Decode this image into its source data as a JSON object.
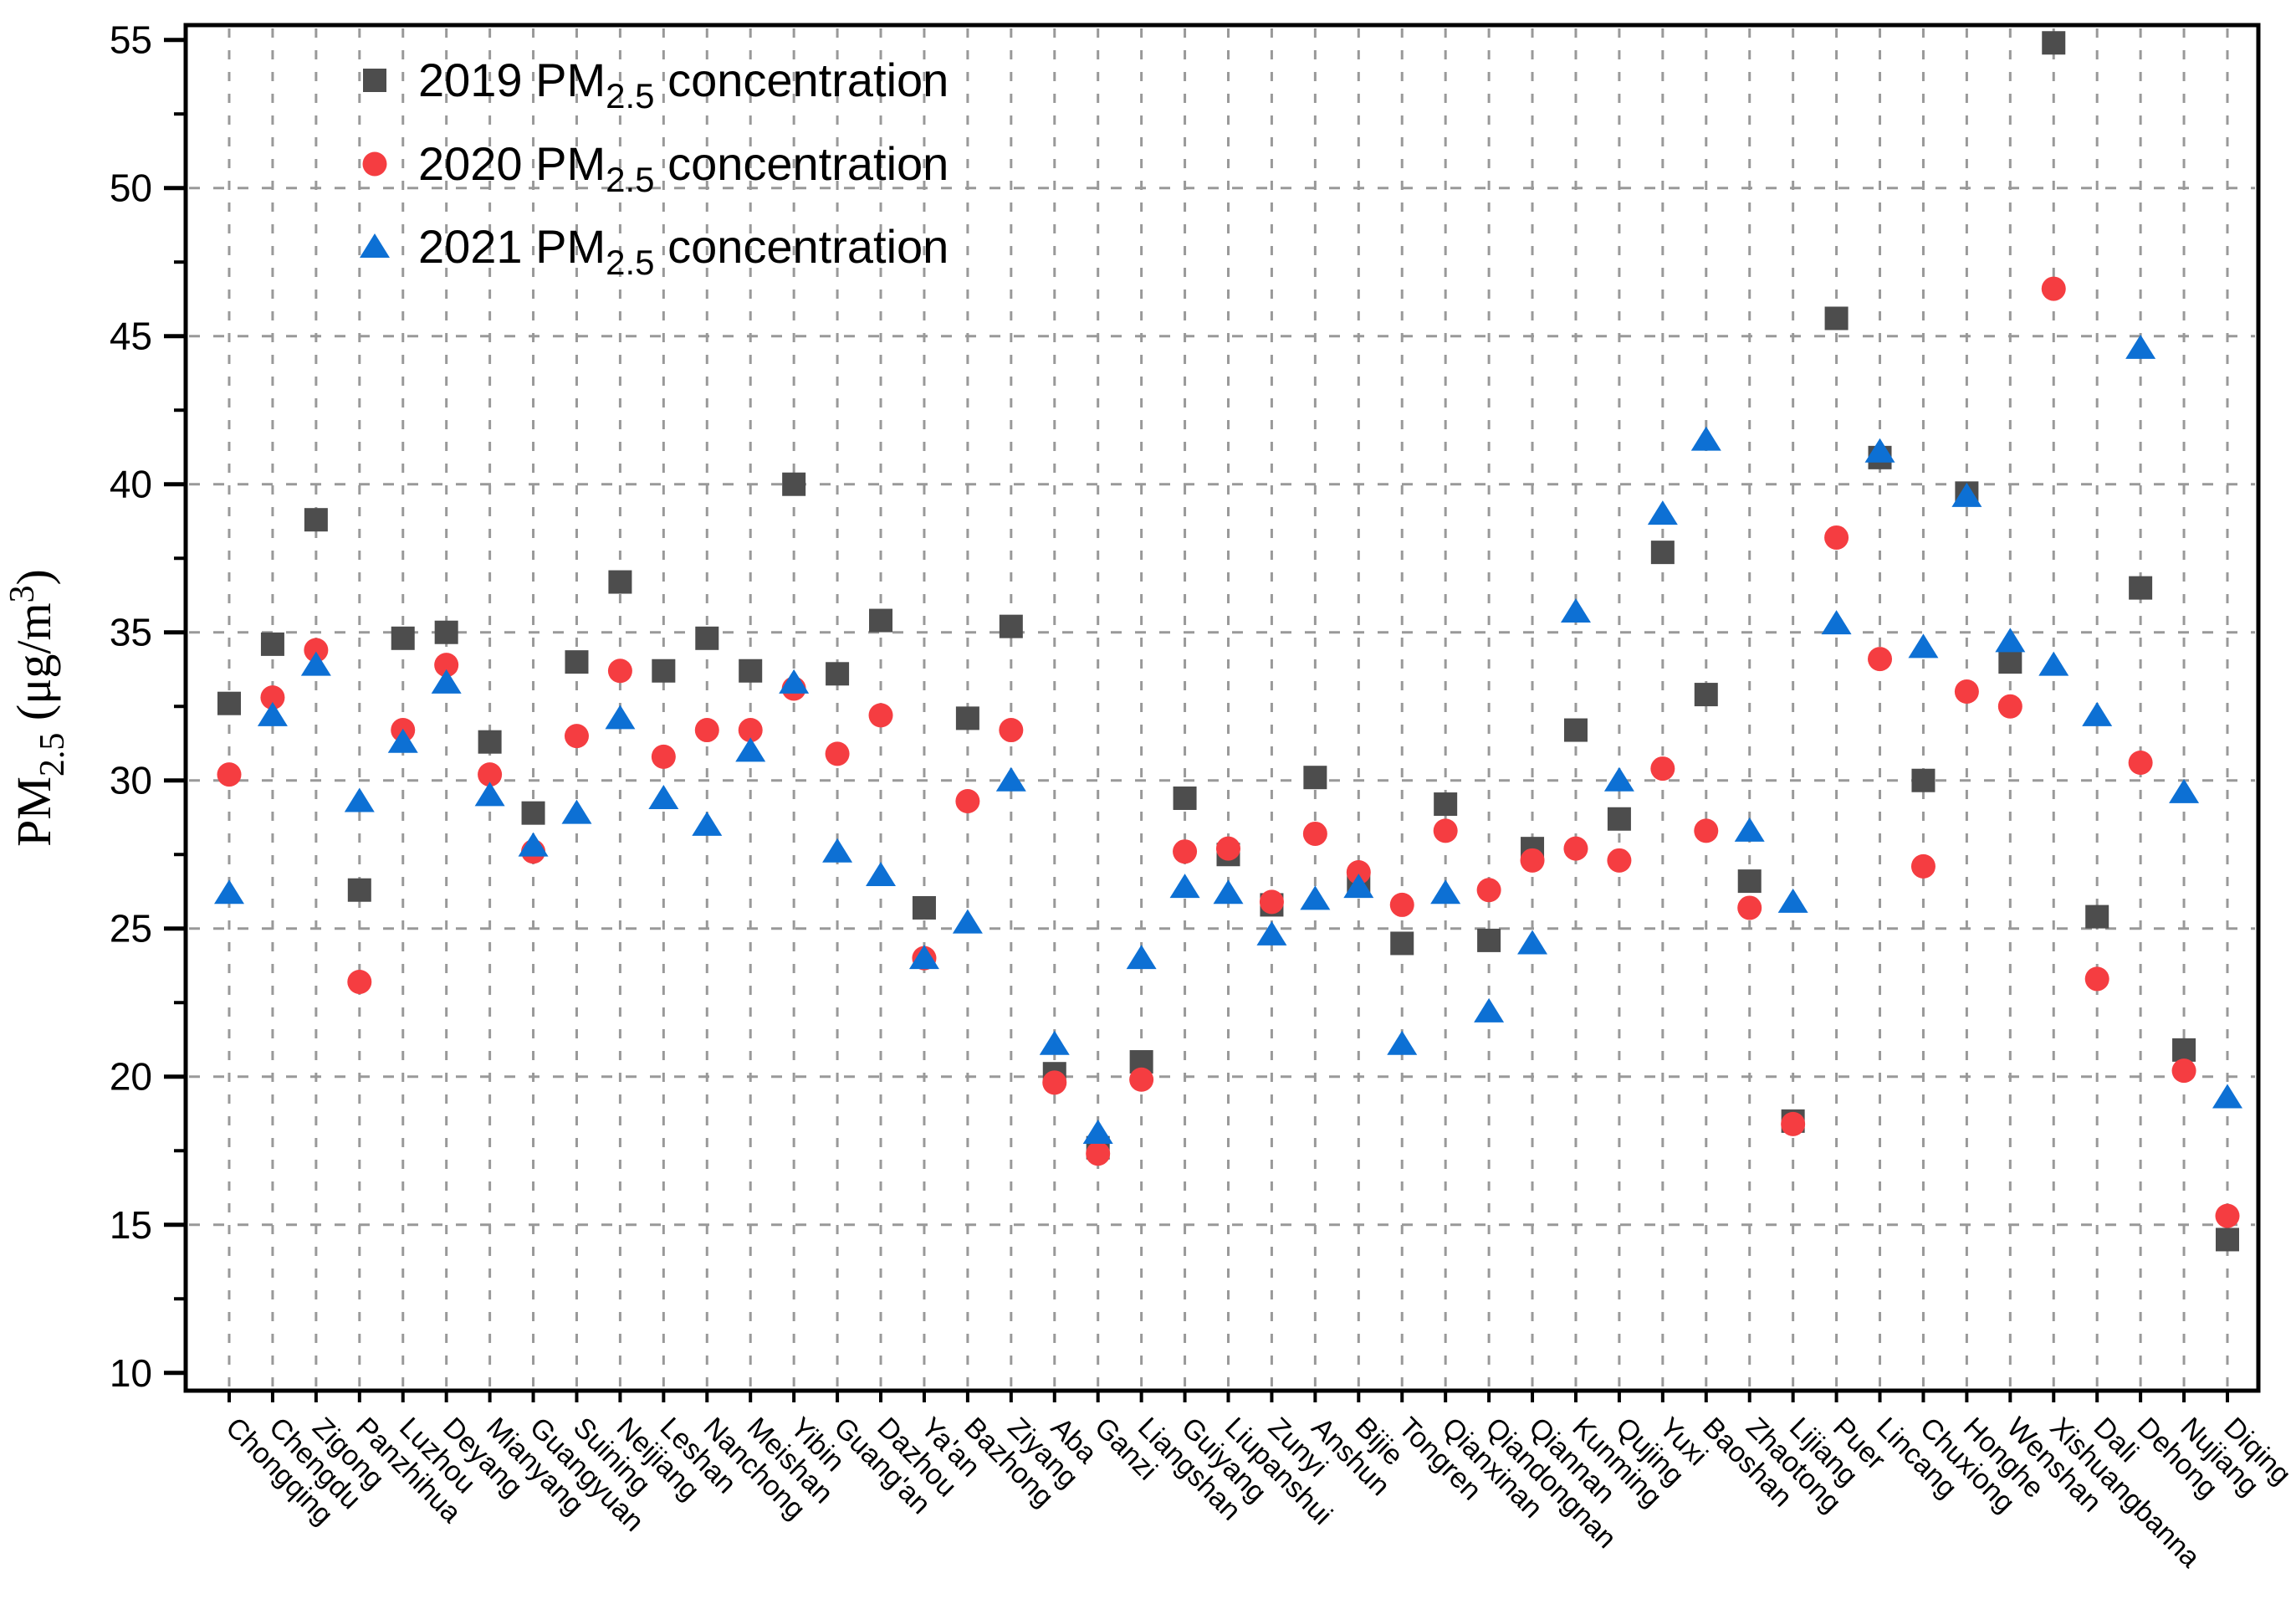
{
  "figure": {
    "background": "#ffffff",
    "axis_color": "#000000",
    "gridline_color": "#999999"
  },
  "legend": {
    "position": "top-left",
    "items": [
      {
        "prefix": "2019 PM",
        "sub": "2.5",
        "suffix": " concentration",
        "marker": "square-marker-icon",
        "color": "#4d4d4d"
      },
      {
        "prefix": "2020 PM",
        "sub": "2.5",
        "suffix": " concentration",
        "marker": "circle-marker-icon",
        "color": "#f53d41"
      },
      {
        "prefix": "2021 PM",
        "sub": "2.5",
        "suffix": " concentration",
        "marker": "triangle-marker-icon",
        "color": "#0d70d4"
      }
    ]
  },
  "y_axis": {
    "title_prefix": "PM",
    "title_sub": "2.5",
    "title_mid": " (μg/m",
    "title_sup": "3",
    "title_end": ")",
    "major_ticks": [
      10,
      15,
      20,
      25,
      30,
      35,
      40,
      45,
      50,
      55
    ],
    "minor_ticks": [
      12.5,
      17.5,
      22.5,
      27.5,
      32.5,
      37.5,
      42.5,
      47.5,
      52.5
    ],
    "gridline_values": [
      15,
      20,
      25,
      30,
      35,
      40,
      45,
      50
    ]
  },
  "chart_data": {
    "type": "scatter",
    "title": "",
    "xlabel": "",
    "ylabel": "PM2.5 (μg/m³)",
    "ylim": [
      10,
      55
    ],
    "grid": true,
    "legend_position": "top-left",
    "categories": [
      "Chongqing",
      "Chengdu",
      "Zigong",
      "Panzhihua",
      "Luzhou",
      "Deyang",
      "Mianyang",
      "Guangyuan",
      "Suining",
      "Neijiang",
      "Leshan",
      "Nanchong",
      "Meishan",
      "Yibin",
      "Guang'an",
      "Dazhou",
      "Ya'an",
      "Bazhong",
      "Ziyang",
      "Aba",
      "Ganzi",
      "Liangshan",
      "Guiyang",
      "Liupanshui",
      "Zunyi",
      "Anshun",
      "Bijie",
      "Tongren",
      "Qianxinan",
      "Qiandongnan",
      "Qiannan",
      "Kunming",
      "Qujing",
      "Yuxi",
      "Baoshan",
      "Zhaotong",
      "Lijiang",
      "Puer",
      "Lincang",
      "Chuxiong",
      "Honghe",
      "Wenshan",
      "Xishuangbanna",
      "Dali",
      "Dehong",
      "Nujiang",
      "Diqing"
    ],
    "series": [
      {
        "name": "2019 PM2.5 concentration",
        "marker": "square",
        "color": "#4d4d4d",
        "values": [
          32.6,
          34.6,
          38.8,
          26.3,
          34.8,
          35.0,
          31.3,
          28.9,
          34.0,
          36.7,
          33.7,
          34.8,
          33.7,
          40.0,
          33.6,
          35.4,
          25.7,
          32.1,
          35.2,
          20.1,
          17.6,
          20.5,
          29.4,
          27.5,
          25.8,
          30.1,
          26.5,
          24.5,
          29.2,
          24.6,
          27.7,
          31.7,
          28.7,
          37.7,
          32.9,
          26.6,
          18.5,
          45.6,
          40.9,
          30.0,
          39.7,
          34.0,
          54.9,
          25.4,
          36.5,
          20.9,
          14.5
        ]
      },
      {
        "name": "2020 PM2.5 concentration",
        "marker": "circle",
        "color": "#f53d41",
        "values": [
          30.2,
          32.8,
          34.4,
          23.2,
          31.7,
          33.9,
          30.2,
          27.6,
          31.5,
          33.7,
          30.8,
          31.7,
          31.7,
          33.1,
          30.9,
          32.2,
          24.0,
          29.3,
          31.7,
          19.8,
          17.4,
          19.9,
          27.6,
          27.7,
          25.9,
          28.2,
          26.9,
          25.8,
          28.3,
          26.3,
          27.3,
          27.7,
          27.3,
          30.4,
          28.3,
          25.7,
          18.4,
          38.2,
          34.1,
          27.1,
          33.0,
          32.5,
          46.6,
          23.3,
          30.6,
          20.2,
          15.3
        ]
      },
      {
        "name": "2021 PM2.5 concentration",
        "marker": "triangle",
        "color": "#0d70d4",
        "values": [
          26.2,
          32.2,
          33.9,
          29.3,
          31.3,
          33.3,
          29.5,
          27.8,
          28.9,
          32.1,
          29.4,
          28.5,
          31.0,
          33.3,
          27.6,
          26.8,
          24.0,
          25.2,
          30.0,
          21.1,
          18.1,
          24.0,
          26.4,
          26.2,
          24.8,
          26.0,
          26.4,
          21.1,
          26.2,
          22.2,
          24.5,
          35.7,
          30.0,
          39.0,
          41.5,
          28.3,
          25.9,
          35.3,
          41.1,
          34.5,
          39.6,
          34.7,
          33.9,
          32.2,
          44.6,
          29.6,
          19.3
        ]
      }
    ]
  }
}
